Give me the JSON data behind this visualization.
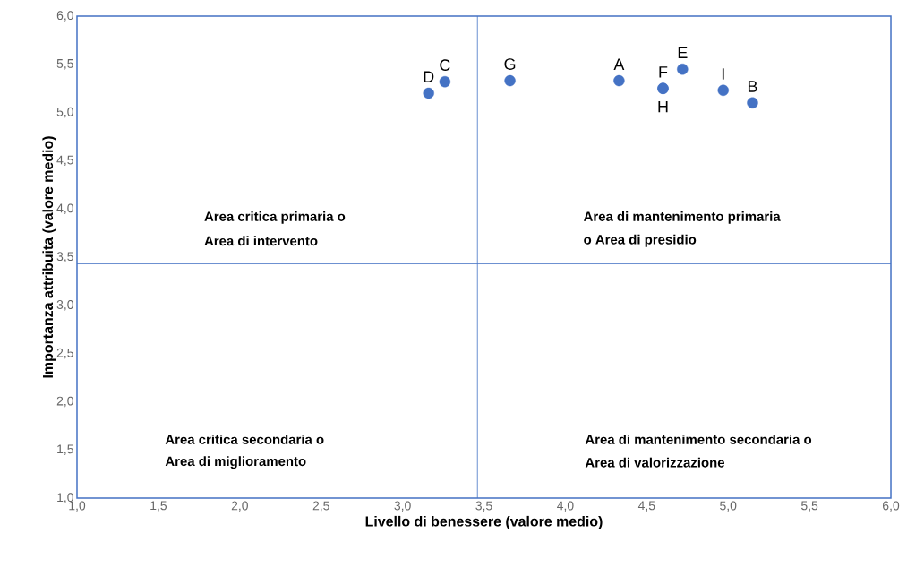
{
  "chart_data": {
    "type": "scatter",
    "xlabel": "Livello di benessere (valore medio)",
    "ylabel": "Importanza attribuita (valore medio)",
    "xlim": [
      1.0,
      6.0
    ],
    "ylim": [
      1.0,
      6.0
    ],
    "xticks": [
      {
        "value": 1.0,
        "label": "1,0"
      },
      {
        "value": 1.5,
        "label": "1,5"
      },
      {
        "value": 2.0,
        "label": "2,0"
      },
      {
        "value": 2.5,
        "label": "2,5"
      },
      {
        "value": 3.0,
        "label": "3,0"
      },
      {
        "value": 3.5,
        "label": "3,5"
      },
      {
        "value": 4.0,
        "label": "4,0"
      },
      {
        "value": 4.5,
        "label": "4,5"
      },
      {
        "value": 5.0,
        "label": "5,0"
      },
      {
        "value": 5.5,
        "label": "5,5"
      },
      {
        "value": 6.0,
        "label": "6,0"
      }
    ],
    "yticks": [
      {
        "value": 1.0,
        "label": "1,0"
      },
      {
        "value": 1.5,
        "label": "1,5"
      },
      {
        "value": 2.0,
        "label": "2,0"
      },
      {
        "value": 2.5,
        "label": "2,5"
      },
      {
        "value": 3.0,
        "label": "3,0"
      },
      {
        "value": 3.5,
        "label": "3,5"
      },
      {
        "value": 4.0,
        "label": "4,0"
      },
      {
        "value": 4.5,
        "label": "4,5"
      },
      {
        "value": 5.0,
        "label": "5,0"
      },
      {
        "value": 5.5,
        "label": "5,5"
      },
      {
        "value": 6.0,
        "label": "6,0"
      }
    ],
    "series": [
      {
        "name": "D",
        "color": "#4472c4",
        "x": [
          3.16
        ],
        "values": [
          5.2
        ]
      },
      {
        "name": "C",
        "color": "#4472c4",
        "x": [
          3.26
        ],
        "values": [
          5.32
        ]
      },
      {
        "name": "G",
        "color": "#4472c4",
        "x": [
          3.66
        ],
        "values": [
          5.33
        ]
      },
      {
        "name": "A",
        "color": "#4472c4",
        "x": [
          4.33
        ],
        "values": [
          5.33
        ]
      },
      {
        "name": "F",
        "color": "#4472c4",
        "x": [
          4.6
        ],
        "values": [
          5.25
        ]
      },
      {
        "name": "H",
        "color": "#4472c4",
        "x": [
          4.6
        ],
        "values": [
          5.25
        ]
      },
      {
        "name": "E",
        "color": "#4472c4",
        "x": [
          4.72
        ],
        "values": [
          5.45
        ]
      },
      {
        "name": "I",
        "color": "#4472c4",
        "x": [
          4.97
        ],
        "values": [
          5.23
        ]
      },
      {
        "name": "B",
        "color": "#4472c4",
        "x": [
          5.15
        ],
        "values": [
          5.1
        ]
      }
    ],
    "marker": "circle",
    "legend": false,
    "ref_lines": [
      {
        "axis": "x",
        "value": 3.46,
        "color": "#4472c4",
        "line_style": "solid"
      },
      {
        "axis": "y",
        "value": 3.43,
        "color": "#4472c4",
        "line_style": "solid"
      }
    ],
    "annotations": [
      "Area critica primaria o",
      "Area di intervento",
      "Area di mantenimento primaria",
      "o Area di presidio",
      "Area critica secondaria o",
      "Area di miglioramento",
      "Area di mantenimento secondaria o",
      "Area di valorizzazione"
    ]
  }
}
